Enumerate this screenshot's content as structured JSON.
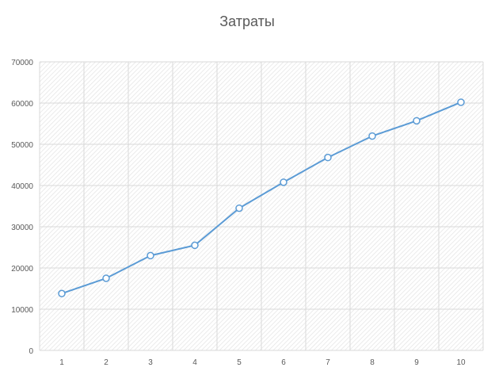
{
  "chart_data": {
    "type": "line",
    "title": "Затраты",
    "xlabel": "",
    "ylabel": "",
    "categories": [
      "1",
      "2",
      "3",
      "4",
      "5",
      "6",
      "7",
      "8",
      "9",
      "10"
    ],
    "series": [
      {
        "values": [
          13800,
          17500,
          23000,
          25500,
          34500,
          40800,
          46800,
          52000,
          55700,
          60200
        ]
      }
    ],
    "ylim": [
      0,
      70000
    ],
    "yticks": [
      "0",
      "10000",
      "20000",
      "30000",
      "40000",
      "50000",
      "60000",
      "70000"
    ],
    "grid": true,
    "legend": "none",
    "line_color": "#5b9bd5",
    "plot_pattern": "diagonal-hatch"
  }
}
